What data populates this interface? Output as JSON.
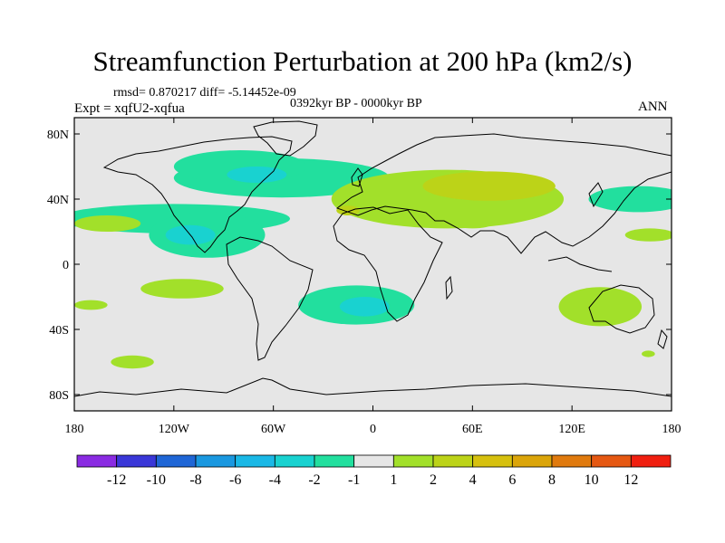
{
  "title": "Streamfunction Perturbation at 200 hPa (km2/s)",
  "stats_line": "rmsd= 0.870217 diff= -5.14452e-09",
  "period_label": "0392kyr BP - 0000kyr BP",
  "experiment_label": "Expt = xqfU2-xqfua",
  "season_label": "ANN",
  "chart_data": {
    "type": "heatmap",
    "subtype": "filled-contour map",
    "title": "Streamfunction Perturbation at 200 hPa (km2/s)",
    "units": "km2/s",
    "x_axis": {
      "range": [
        -180,
        180
      ],
      "ticks": [
        {
          "value": -180,
          "label": "180"
        },
        {
          "value": -120,
          "label": "120W"
        },
        {
          "value": -60,
          "label": "60W"
        },
        {
          "value": 0,
          "label": "0"
        },
        {
          "value": 60,
          "label": "60E"
        },
        {
          "value": 120,
          "label": "120E"
        },
        {
          "value": 180,
          "label": "180"
        }
      ]
    },
    "y_axis": {
      "range": [
        -90,
        90
      ],
      "ticks": [
        {
          "value": 80,
          "label": "80N"
        },
        {
          "value": 40,
          "label": "40N"
        },
        {
          "value": 0,
          "label": "0"
        },
        {
          "value": -40,
          "label": "40S"
        },
        {
          "value": -80,
          "label": "80S"
        }
      ]
    },
    "colorbar": {
      "colors": [
        "#8a2be2",
        "#3a37d8",
        "#1f66d6",
        "#1a98e0",
        "#1ab8e6",
        "#19d2d0",
        "#22df9e",
        "#e6e6e6",
        "#a2e02a",
        "#bcd318",
        "#d6c00e",
        "#dba50a",
        "#e07a0e",
        "#e55812",
        "#f01f10"
      ],
      "labels": [
        "-12",
        "-10",
        "-8",
        "-6",
        "-4",
        "-2",
        "-1",
        "1",
        "2",
        "4",
        "6",
        "8",
        "10",
        "12"
      ]
    },
    "regions": [
      {
        "name": "north-pacific-band",
        "level": -1,
        "lon": -120,
        "lat": 28,
        "rlon": 70,
        "rlat": 9
      },
      {
        "name": "north-atlantic-band",
        "level": -1,
        "lon": -55,
        "lat": 53,
        "rlon": 65,
        "rlat": 12
      },
      {
        "name": "canada-band",
        "level": -1,
        "lon": -80,
        "lat": 60,
        "rlon": 40,
        "rlat": 10
      },
      {
        "name": "west-pacific-band",
        "level": -1,
        "lon": 160,
        "lat": 40,
        "rlon": 30,
        "rlat": 8
      },
      {
        "name": "north-atlantic-core",
        "level": -2,
        "lon": -70,
        "lat": 55,
        "rlon": 18,
        "rlat": 5
      },
      {
        "name": "mexico-low",
        "level": -1,
        "lon": -100,
        "lat": 18,
        "rlon": 35,
        "rlat": 14
      },
      {
        "name": "mexico-core",
        "level": -2,
        "lon": -110,
        "lat": 18,
        "rlon": 15,
        "rlat": 6
      },
      {
        "name": "south-atlantic-low",
        "level": -1,
        "lon": -10,
        "lat": -25,
        "rlon": 35,
        "rlat": 12
      },
      {
        "name": "south-atlantic-core",
        "level": -2,
        "lon": -5,
        "lat": -26,
        "rlon": 15,
        "rlat": 6
      },
      {
        "name": "eurasia-high",
        "level": 1,
        "lon": 45,
        "lat": 40,
        "rlon": 70,
        "rlat": 18
      },
      {
        "name": "eurasia-core",
        "level": 2,
        "lon": 70,
        "lat": 48,
        "rlon": 40,
        "rlat": 9
      },
      {
        "name": "iberia-core",
        "level": 2,
        "lon": -15,
        "lat": 33,
        "rlon": 7,
        "rlat": 3
      },
      {
        "name": "mid-pacific-high",
        "level": 1,
        "lon": -160,
        "lat": 25,
        "rlon": 20,
        "rlat": 5
      },
      {
        "name": "south-pacific-high",
        "level": 1,
        "lon": -115,
        "lat": -15,
        "rlon": 25,
        "rlat": 6
      },
      {
        "name": "south-pacific-west",
        "level": 1,
        "lon": -170,
        "lat": -25,
        "rlon": 10,
        "rlat": 3
      },
      {
        "name": "southern-ocean-high",
        "level": 1,
        "lon": -145,
        "lat": -60,
        "rlon": 13,
        "rlat": 4
      },
      {
        "name": "australia-high",
        "level": 1,
        "lon": 137,
        "lat": -26,
        "rlon": 25,
        "rlat": 12
      },
      {
        "name": "arabia-high",
        "level": 1,
        "lon": 60,
        "lat": 25,
        "rlon": 12,
        "rlat": 3
      },
      {
        "name": "east-asia-high",
        "level": 1,
        "lon": 167,
        "lat": 18,
        "rlon": 15,
        "rlat": 4
      },
      {
        "name": "new-zealand-high",
        "level": 1,
        "lon": 166,
        "lat": -55,
        "rlon": 4,
        "rlat": 2
      }
    ]
  }
}
